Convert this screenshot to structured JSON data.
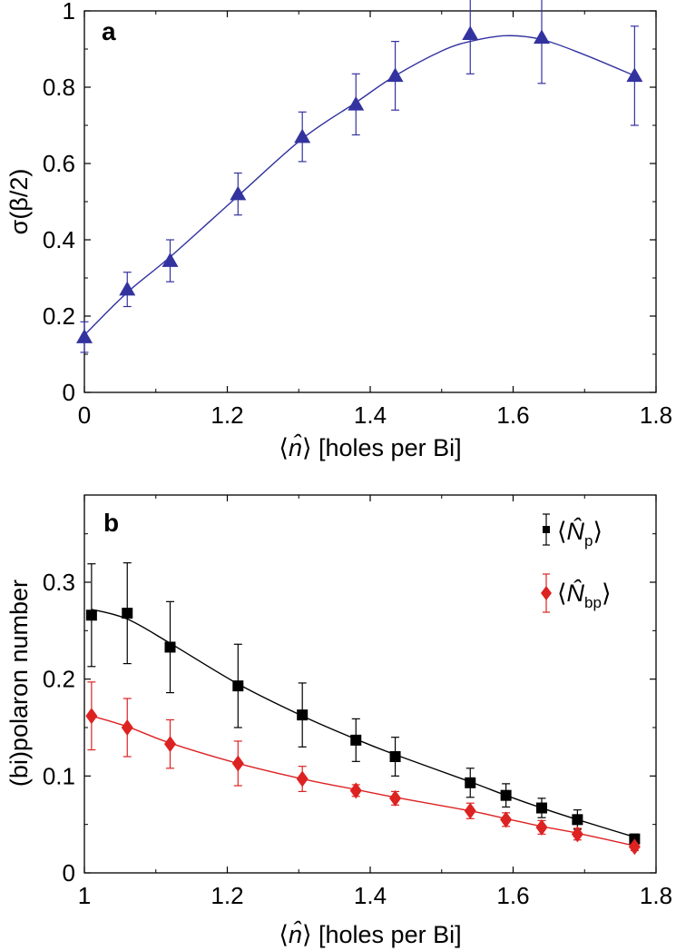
{
  "chart_data": [
    {
      "type": "line",
      "panel_label": "a",
      "title": "",
      "xlabel_prefix": "⟨",
      "xlabel_var": "n̂",
      "xlabel_suffix": "⟩ [holes per Bi]",
      "ylabel": "σ(β/2)",
      "x_ticks": [
        "0",
        "1.2",
        "1.4",
        "1.6",
        "1.8"
      ],
      "y_ticks": [
        "0",
        "0.2",
        "0.4",
        "0.6",
        "0.8",
        "1"
      ],
      "ylim": [
        0,
        1
      ],
      "x_axis_note": "axis break: 0 is placed one major interval before 1.2",
      "grid": false,
      "series": [
        {
          "name": "σ(β/2)",
          "color": "#3333a0",
          "marker": "triangle",
          "x": [
            0,
            1.06,
            1.12,
            1.215,
            1.305,
            1.38,
            1.435,
            1.54,
            1.64,
            1.77
          ],
          "y": [
            0.145,
            0.27,
            0.345,
            0.52,
            0.67,
            0.755,
            0.83,
            0.94,
            0.93,
            0.83
          ],
          "err": [
            0.04,
            0.045,
            0.055,
            0.055,
            0.065,
            0.08,
            0.09,
            0.105,
            0.12,
            0.13
          ],
          "fit_x": [
            0,
            1.06,
            1.12,
            1.215,
            1.305,
            1.38,
            1.435,
            1.5,
            1.54,
            1.59,
            1.64,
            1.7,
            1.77
          ],
          "fit_y": [
            0.15,
            0.262,
            0.355,
            0.515,
            0.665,
            0.76,
            0.83,
            0.895,
            0.92,
            0.935,
            0.925,
            0.885,
            0.83
          ]
        }
      ]
    },
    {
      "type": "line",
      "panel_label": "b",
      "title": "",
      "xlabel_prefix": "⟨",
      "xlabel_var": "n̂",
      "xlabel_suffix": "⟩ [holes per Bi]",
      "ylabel": "(bi)polaron number",
      "x_ticks": [
        "1",
        "1.2",
        "1.4",
        "1.6",
        "1.8"
      ],
      "xlim": [
        1,
        1.8
      ],
      "y_ticks": [
        "0",
        "0.1",
        "0.2",
        "0.3"
      ],
      "ylim": [
        0,
        0.39
      ],
      "legend": "top-right",
      "grid": false,
      "series": [
        {
          "name": "Np",
          "legend_var": "N̂",
          "legend_sub": "p",
          "color": "#000000",
          "marker": "square",
          "x": [
            1.01,
            1.06,
            1.12,
            1.215,
            1.305,
            1.38,
            1.435,
            1.54,
            1.59,
            1.64,
            1.69,
            1.77
          ],
          "y": [
            0.266,
            0.268,
            0.233,
            0.193,
            0.163,
            0.137,
            0.12,
            0.093,
            0.08,
            0.067,
            0.055,
            0.035
          ],
          "err": [
            0.053,
            0.052,
            0.047,
            0.043,
            0.033,
            0.022,
            0.02,
            0.015,
            0.012,
            0.01,
            0.01,
            0.005
          ],
          "fit_x": [
            1.01,
            1.06,
            1.12,
            1.215,
            1.305,
            1.38,
            1.435,
            1.54,
            1.59,
            1.64,
            1.69,
            1.77
          ],
          "fit_y": [
            0.272,
            0.262,
            0.237,
            0.195,
            0.162,
            0.138,
            0.122,
            0.094,
            0.08,
            0.067,
            0.055,
            0.037
          ]
        },
        {
          "name": "Nbp",
          "legend_var": "N̂",
          "legend_sub": "bp",
          "color": "#dd2222",
          "marker": "diamond",
          "x": [
            1.01,
            1.06,
            1.12,
            1.215,
            1.305,
            1.38,
            1.435,
            1.54,
            1.59,
            1.64,
            1.69,
            1.77
          ],
          "y": [
            0.162,
            0.15,
            0.133,
            0.113,
            0.097,
            0.085,
            0.077,
            0.064,
            0.055,
            0.047,
            0.04,
            0.027
          ],
          "err": [
            0.035,
            0.03,
            0.025,
            0.023,
            0.013,
            0.006,
            0.007,
            0.008,
            0.007,
            0.007,
            0.006,
            0.004
          ],
          "fit_x": [
            1.01,
            1.06,
            1.12,
            1.215,
            1.305,
            1.38,
            1.435,
            1.54,
            1.59,
            1.64,
            1.69,
            1.77
          ],
          "fit_y": [
            0.162,
            0.151,
            0.134,
            0.113,
            0.097,
            0.086,
            0.078,
            0.064,
            0.056,
            0.048,
            0.041,
            0.028
          ]
        }
      ]
    }
  ]
}
